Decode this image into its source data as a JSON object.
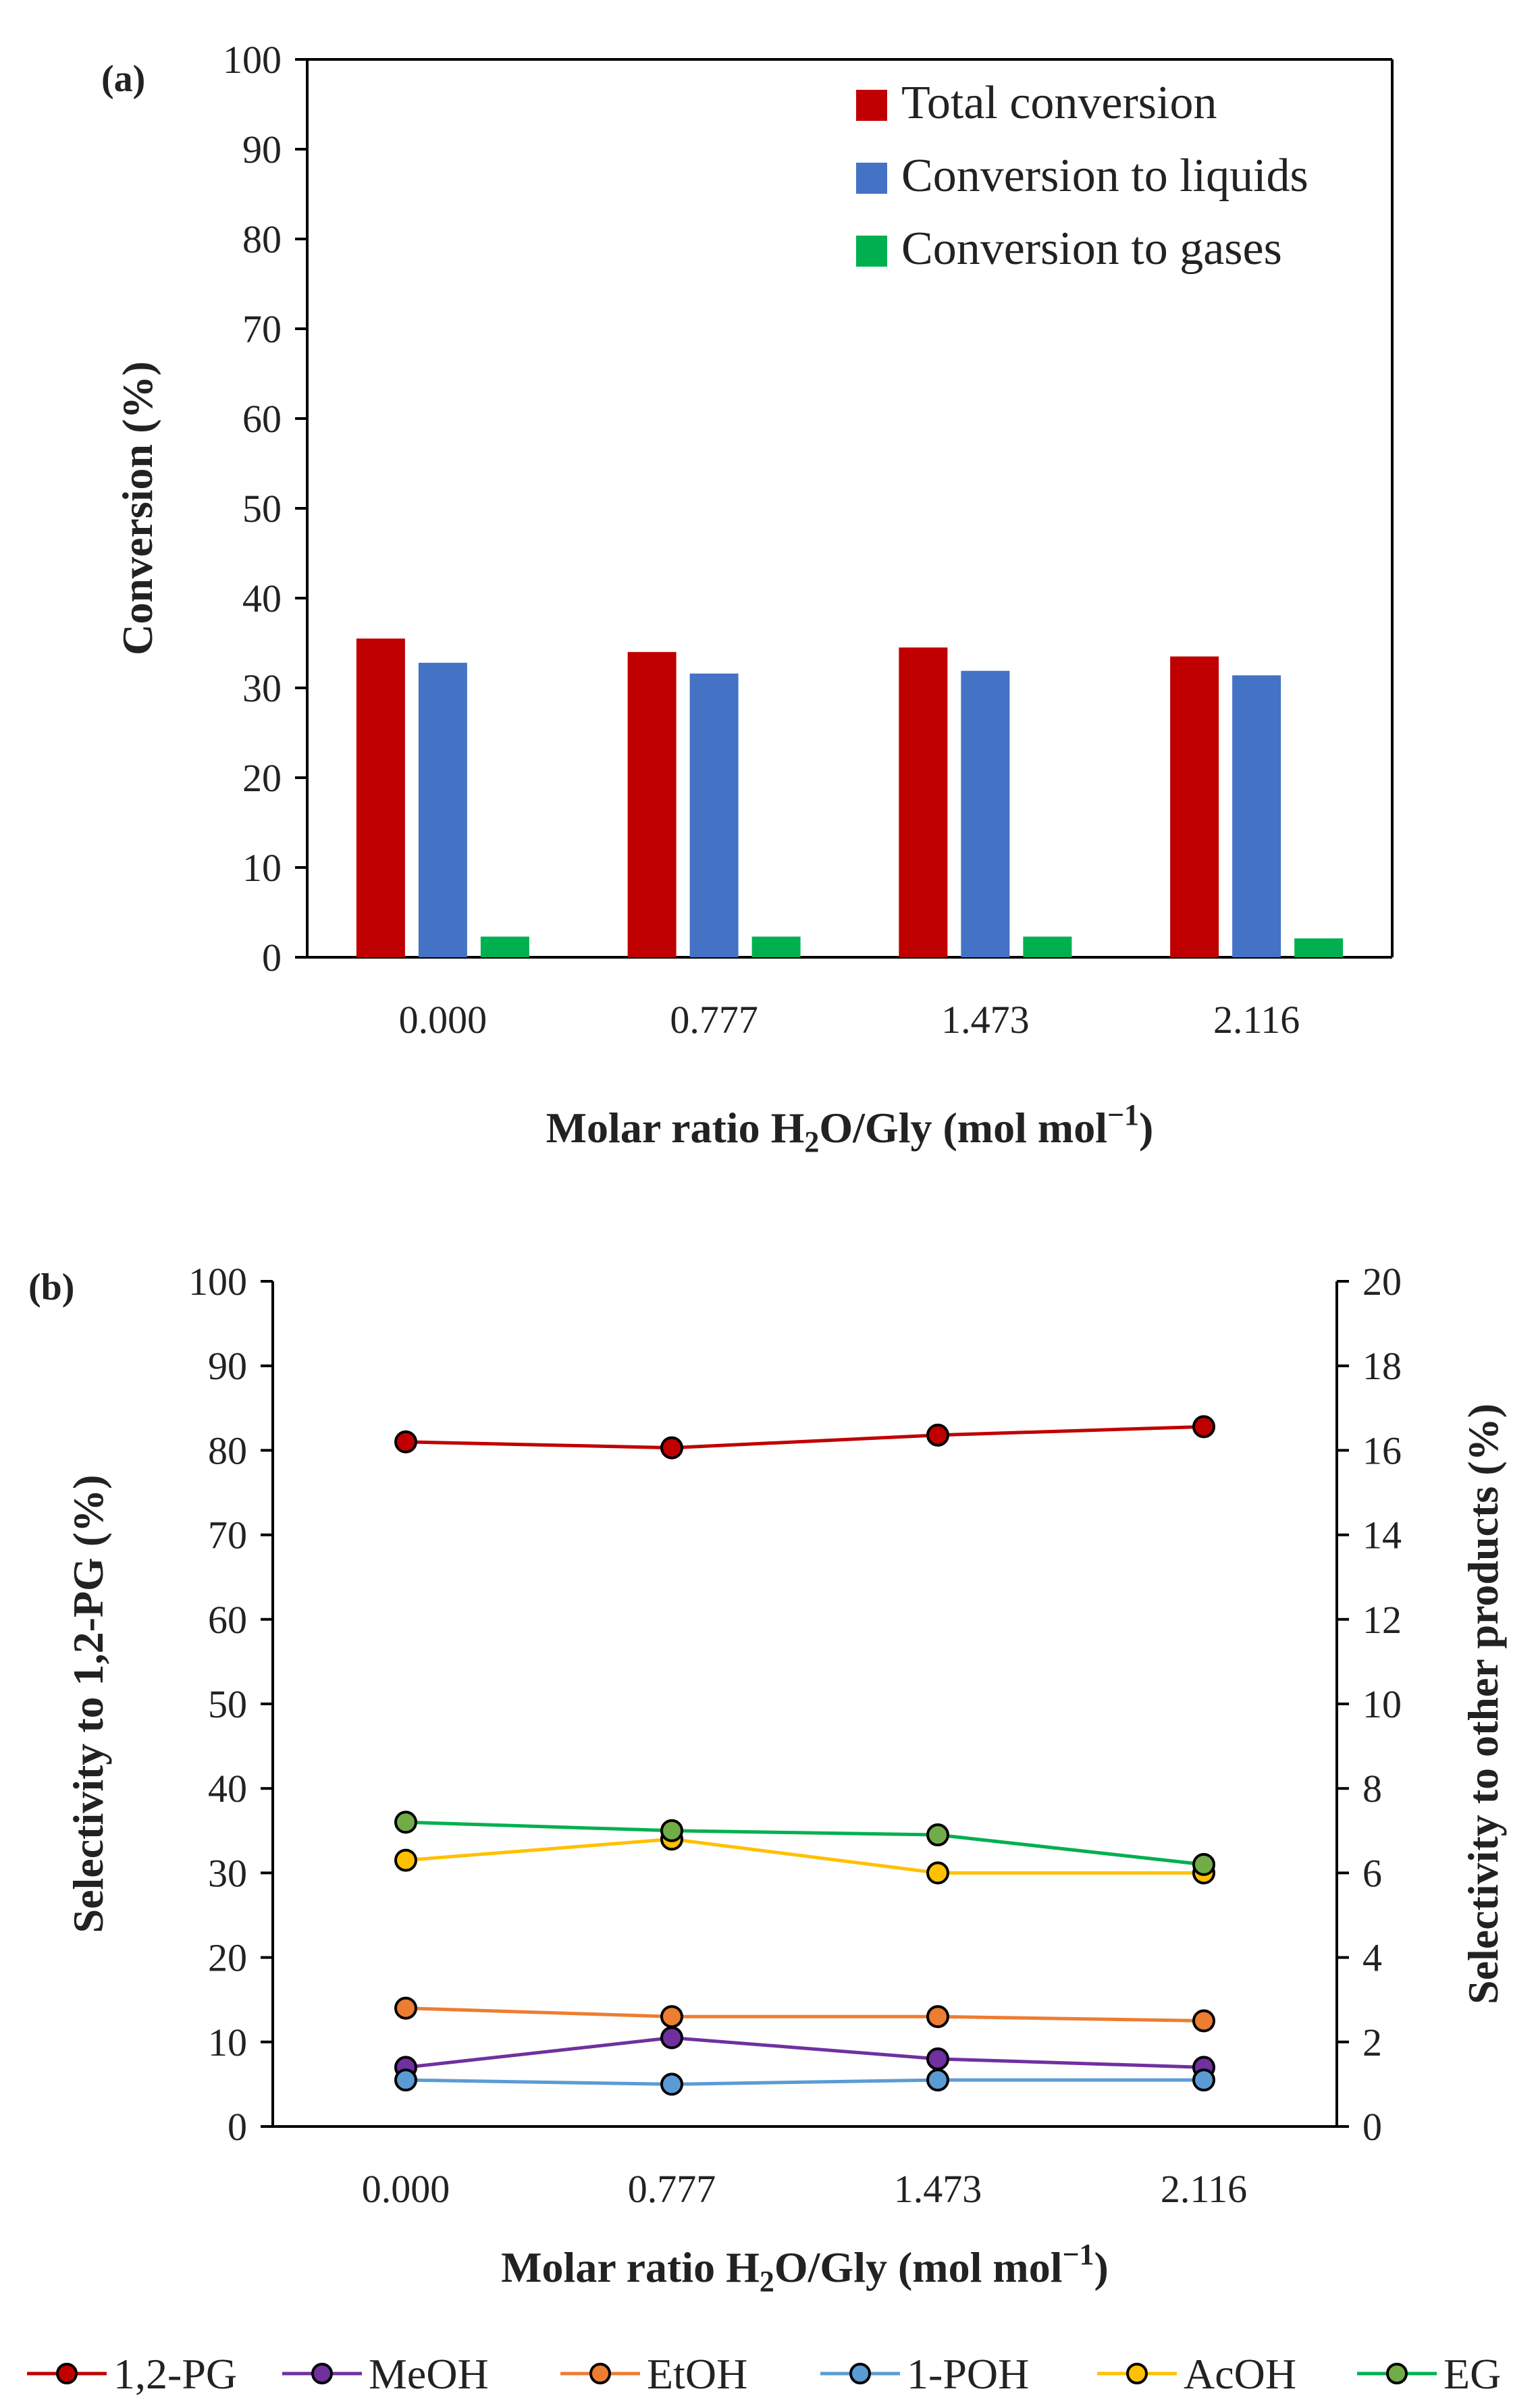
{
  "chart_data": [
    {
      "type": "bar",
      "panel_label": "(a)",
      "categories": [
        "0.000",
        "0.777",
        "1.473",
        "2.116"
      ],
      "xlabel_main": "Molar ratio H",
      "xlabel_sub": "2",
      "xlabel_rest": "O/Gly (mol mol",
      "xlabel_sup": "−1",
      "xlabel_end": ")",
      "ylabel": "Conversion (%)",
      "ylim": [
        0,
        100
      ],
      "yticks": [
        "0",
        "10",
        "20",
        "30",
        "40",
        "50",
        "60",
        "70",
        "80",
        "90",
        "100"
      ],
      "legend_position": "top-right",
      "series": [
        {
          "name": "Total conversion",
          "color": "#C00000",
          "values": [
            35.5,
            34.0,
            34.5,
            33.5
          ]
        },
        {
          "name": "Conversion to liquids",
          "color": "#4472C4",
          "values": [
            32.8,
            31.6,
            31.9,
            31.4
          ]
        },
        {
          "name": "Conversion to gases",
          "color": "#00B050",
          "values": [
            2.3,
            2.3,
            2.3,
            2.1
          ]
        }
      ]
    },
    {
      "type": "line",
      "panel_label": "(b)",
      "categories": [
        "0.000",
        "0.777",
        "1.473",
        "2.116"
      ],
      "xlabel_main": "Molar ratio H",
      "xlabel_sub": "2",
      "xlabel_rest": "O/Gly (mol mol",
      "xlabel_sup": "−1",
      "xlabel_end": ")",
      "ylabel": "Selectivity to 1,2-PG (%)",
      "ylim": [
        0,
        100
      ],
      "yticks": [
        "0",
        "10",
        "20",
        "30",
        "40",
        "50",
        "60",
        "70",
        "80",
        "90",
        "100"
      ],
      "y2label": "Selectivity to other products (%)",
      "y2lim": [
        0,
        20
      ],
      "y2ticks": [
        "0",
        "2",
        "4",
        "6",
        "8",
        "10",
        "12",
        "14",
        "16",
        "18",
        "20"
      ],
      "legend_position": "bottom",
      "series": [
        {
          "name": "1,2-PG",
          "axis": "left",
          "line_color": "#C00000",
          "marker_color": "#C00000",
          "values": [
            81.0,
            80.3,
            81.8,
            82.8
          ]
        },
        {
          "name": "MeOH",
          "axis": "right",
          "line_color": "#7030A0",
          "marker_color": "#7030A0",
          "values": [
            1.4,
            2.1,
            1.6,
            1.4
          ]
        },
        {
          "name": "EtOH",
          "axis": "right",
          "line_color": "#ED7D31",
          "marker_color": "#ED7D31",
          "values": [
            2.8,
            2.6,
            2.6,
            2.5
          ]
        },
        {
          "name": "1-POH",
          "axis": "right",
          "line_color": "#5B9BD5",
          "marker_color": "#5B9BD5",
          "values": [
            1.1,
            1.0,
            1.1,
            1.1
          ]
        },
        {
          "name": "AcOH",
          "axis": "right",
          "line_color": "#FFC000",
          "marker_color": "#FFC000",
          "values": [
            6.3,
            6.8,
            6.0,
            6.0
          ]
        },
        {
          "name": "EG",
          "axis": "right",
          "line_color": "#00B050",
          "marker_color": "#70AD47",
          "values": [
            7.2,
            7.0,
            6.9,
            6.2
          ]
        }
      ]
    }
  ]
}
